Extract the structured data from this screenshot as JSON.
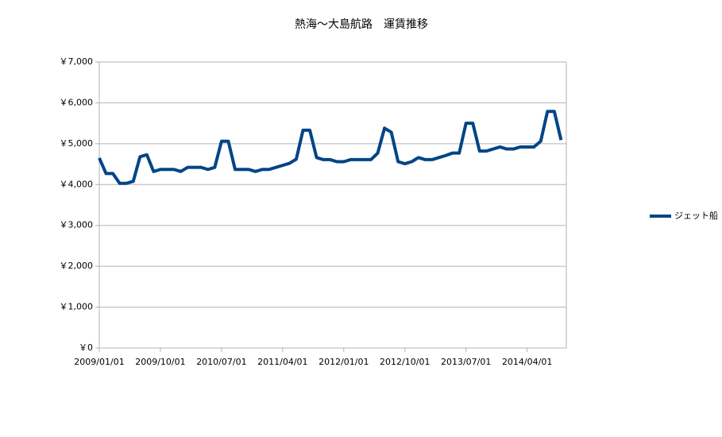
{
  "chart_data": {
    "type": "line",
    "title": "熱海～大島航路　運賃推移",
    "categories": [
      "2009/01/01",
      null,
      null,
      null,
      null,
      null,
      null,
      null,
      null,
      "2009/10/01",
      null,
      null,
      null,
      null,
      null,
      null,
      null,
      null,
      "2010/07/01",
      null,
      null,
      null,
      null,
      null,
      null,
      null,
      null,
      "2011/04/01",
      null,
      null,
      null,
      null,
      null,
      null,
      null,
      null,
      "2012/01/01",
      null,
      null,
      null,
      null,
      null,
      null,
      null,
      null,
      "2012/10/01",
      null,
      null,
      null,
      null,
      null,
      null,
      null,
      null,
      "2013/07/01",
      null,
      null,
      null,
      null,
      null,
      null,
      null,
      null,
      "2014/04/01",
      null,
      null,
      null,
      null,
      null
    ],
    "series": [
      {
        "name": "ジェット船",
        "color": "#004586",
        "values": [
          4650,
          4270,
          4270,
          4030,
          4030,
          4080,
          4680,
          4730,
          4320,
          4370,
          4370,
          4370,
          4320,
          4420,
          4420,
          4420,
          4370,
          4420,
          5060,
          5060,
          4370,
          4370,
          4370,
          4320,
          4370,
          4370,
          4420,
          4470,
          4520,
          4620,
          5330,
          5330,
          4660,
          4610,
          4610,
          4560,
          4560,
          4610,
          4610,
          4610,
          4610,
          4770,
          5380,
          5280,
          4560,
          4510,
          4560,
          4660,
          4610,
          4610,
          4660,
          4710,
          4770,
          4770,
          5500,
          5500,
          4820,
          4820,
          4870,
          4920,
          4870,
          4870,
          4920,
          4920,
          4920,
          5060,
          5790,
          5790,
          5090
        ]
      }
    ],
    "ylim": [
      0,
      7000
    ],
    "yticks": [
      {
        "value": 0,
        "label": "￥0"
      },
      {
        "value": 1000,
        "label": "￥1,000"
      },
      {
        "value": 2000,
        "label": "￥2,000"
      },
      {
        "value": 3000,
        "label": "￥3,000"
      },
      {
        "value": 4000,
        "label": "￥4,000"
      },
      {
        "value": 5000,
        "label": "￥5,000"
      },
      {
        "value": 6000,
        "label": "￥6,000"
      },
      {
        "value": 7000,
        "label": "￥7,000"
      }
    ],
    "grid": true,
    "legend": "right"
  }
}
